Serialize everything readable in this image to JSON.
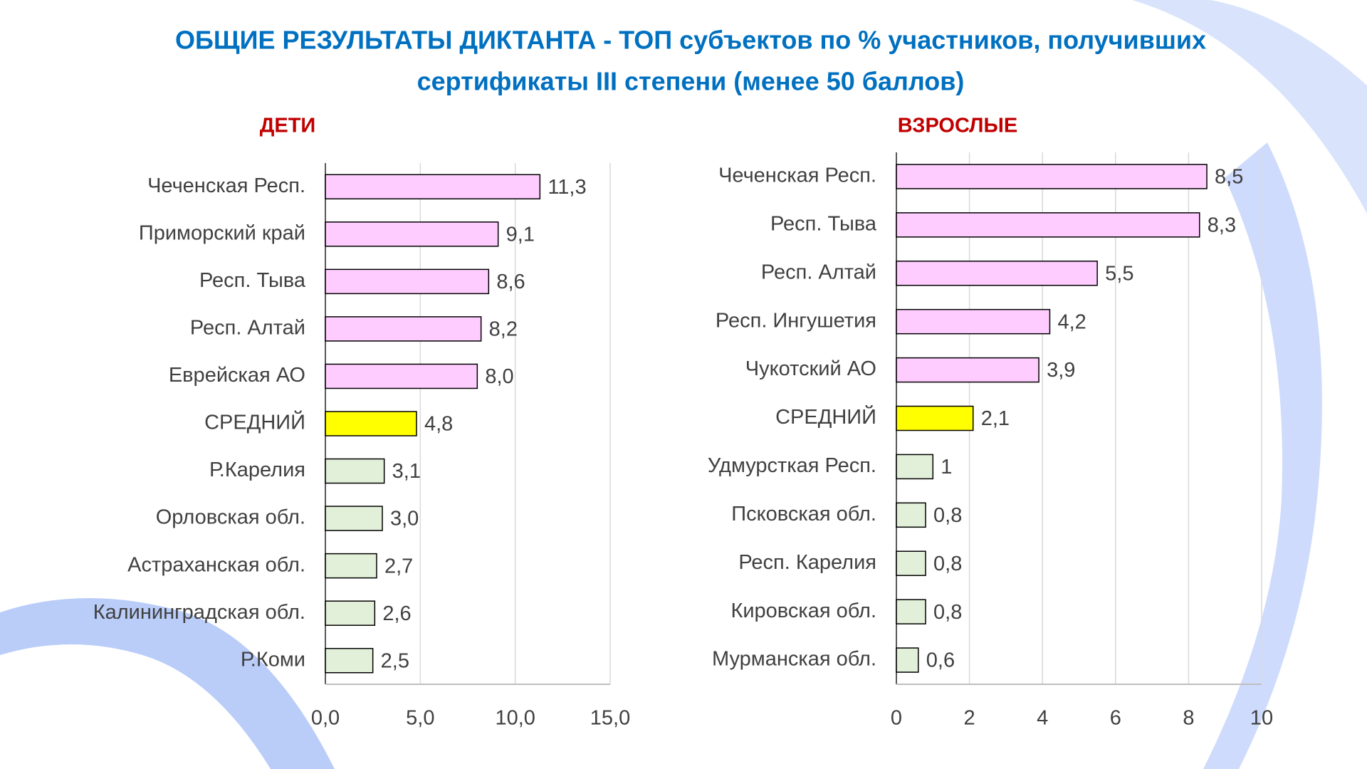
{
  "title": [
    "ОБЩИЕ РЕЗУЛЬТАТЫ ДИКТАНТА - ТОП субъектов по % участников, получивших",
    "сертификаты III степени (менее 50 баллов)"
  ],
  "chart_data": [
    {
      "type": "bar",
      "orientation": "horizontal",
      "title": "ДЕТИ",
      "categories": [
        "Чеченская Респ.",
        "Приморский край",
        "Респ. Тыва",
        "Респ. Алтай",
        "Еврейская АО",
        "СРЕДНИЙ",
        "Р.Карелия",
        "Орловская обл.",
        "Астраханская обл.",
        "Калининградская обл.",
        "Р.Коми"
      ],
      "values": [
        11.3,
        9.1,
        8.6,
        8.2,
        8.0,
        4.8,
        3.1,
        3.0,
        2.7,
        2.6,
        2.5
      ],
      "value_labels": [
        "11,3",
        "9,1",
        "8,6",
        "8,2",
        "8,0",
        "4,8",
        "3,1",
        "3,0",
        "2,7",
        "2,6",
        "2,5"
      ],
      "colors": [
        "#ffccff",
        "#ffccff",
        "#ffccff",
        "#ffccff",
        "#ffccff",
        "#ffff00",
        "#e2efd9",
        "#e2efd9",
        "#e2efd9",
        "#e2efd9",
        "#e2efd9"
      ],
      "xlim": [
        0,
        15
      ],
      "xticks": [
        {
          "value": 0,
          "label": "0,0"
        },
        {
          "value": 5,
          "label": "5,0"
        },
        {
          "value": 10,
          "label": "10,0"
        },
        {
          "value": 15,
          "label": "15,0"
        }
      ],
      "grid": true
    },
    {
      "type": "bar",
      "orientation": "horizontal",
      "title": "ВЗРОСЛЫЕ",
      "categories": [
        "Чеченская Респ.",
        "Респ. Тыва",
        "Респ. Алтай",
        "Респ. Ингушетия",
        "Чукотский АО",
        "СРЕДНИЙ",
        "Удмурсткая Респ.",
        "Псковская обл.",
        "Респ. Карелия",
        "Кировская обл.",
        "Мурманская обл."
      ],
      "values": [
        8.5,
        8.3,
        5.5,
        4.2,
        3.9,
        2.1,
        1,
        0.8,
        0.8,
        0.8,
        0.6
      ],
      "value_labels": [
        "8,5",
        "8,3",
        "5,5",
        "4,2",
        "3,9",
        "2,1",
        "1",
        "0,8",
        "0,8",
        "0,8",
        "0,6"
      ],
      "colors": [
        "#ffccff",
        "#ffccff",
        "#ffccff",
        "#ffccff",
        "#ffccff",
        "#ffff00",
        "#e2efd9",
        "#e2efd9",
        "#e2efd9",
        "#e2efd9",
        "#e2efd9"
      ],
      "xlim": [
        0,
        10
      ],
      "xticks": [
        0,
        2,
        4,
        6,
        8,
        10
      ],
      "grid": true
    }
  ]
}
